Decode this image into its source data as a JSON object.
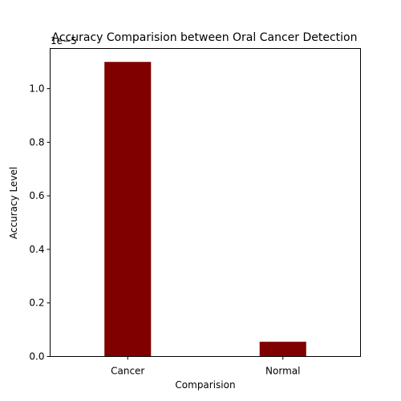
{
  "chart_data": {
    "type": "bar",
    "title": "Accuracy Comparision between Oral Cancer Detection",
    "xlabel": "Comparision",
    "ylabel": "Accuracy Level",
    "scale_label": "1e−5",
    "categories": [
      "Cancer",
      "Normal"
    ],
    "values": [
      1.1e-05,
      5.5e-07
    ],
    "ylim": [
      0,
      1.15e-05
    ],
    "yticks": [
      0,
      2e-06,
      4e-06,
      6e-06,
      8e-06,
      1e-05
    ],
    "ytick_labels": [
      "0.0",
      "0.2",
      "0.4",
      "0.6",
      "0.8",
      "1.0"
    ],
    "bar_color": "#800000",
    "grid": false,
    "legend": "none"
  }
}
